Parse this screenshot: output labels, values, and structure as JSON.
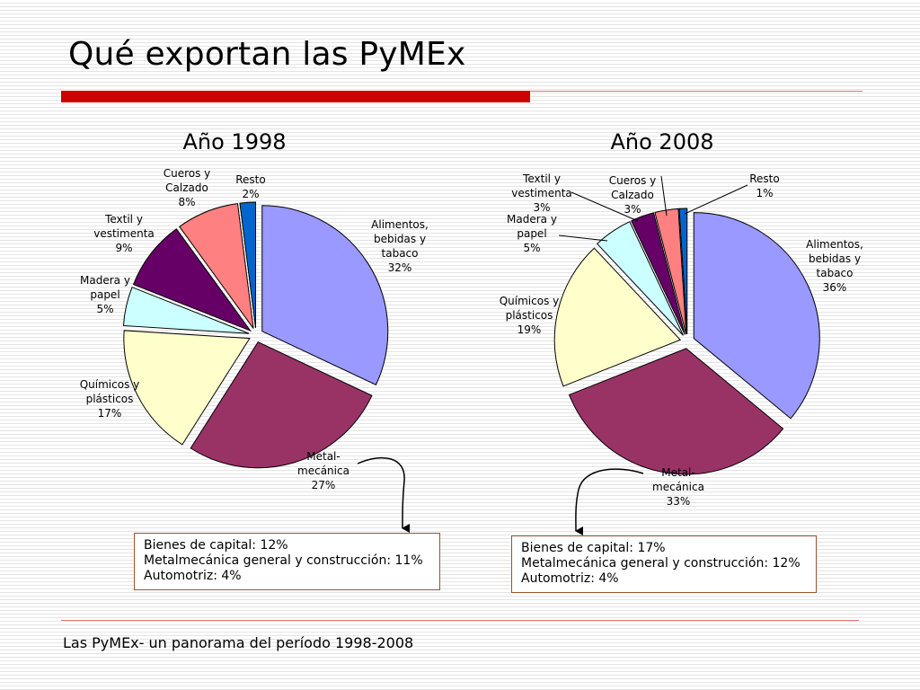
{
  "slide": {
    "title": "Qué exportan las PyMEx",
    "footer": "Las PyMEx- un panorama del período 1998-2008"
  },
  "colors": {
    "alimentos": "#9999ff",
    "metal": "#993366",
    "quimicos": "#ffffcc",
    "madera": "#ccffff",
    "textil": "#660066",
    "cueros": "#ff8080",
    "resto": "#0066cc",
    "accent": "#cc0000"
  },
  "chart_data": [
    {
      "type": "pie",
      "title": "Año 1998",
      "slices": [
        {
          "key": "alimentos",
          "label": [
            "Alimentos,",
            "bebidas y",
            "tabaco",
            "32%"
          ],
          "value": 32
        },
        {
          "key": "metal",
          "label": [
            "Metal-",
            "mecánica",
            "27%"
          ],
          "value": 27
        },
        {
          "key": "quimicos",
          "label": [
            "Químicos y",
            "plásticos",
            "17%"
          ],
          "value": 17
        },
        {
          "key": "madera",
          "label": [
            "Madera y",
            "papel",
            "5%"
          ],
          "value": 5
        },
        {
          "key": "textil",
          "label": [
            "Textil y",
            "vestimenta",
            "9%"
          ],
          "value": 9
        },
        {
          "key": "cueros",
          "label": [
            "Cueros y",
            "Calzado",
            "8%"
          ],
          "value": 8
        },
        {
          "key": "resto",
          "label": [
            "Resto",
            "2%"
          ],
          "value": 2
        }
      ]
    },
    {
      "type": "pie",
      "title": "Año 2008",
      "slices": [
        {
          "key": "alimentos",
          "label": [
            "Alimentos,",
            "bebidas y",
            "tabaco",
            "36%"
          ],
          "value": 36
        },
        {
          "key": "metal",
          "label": [
            "Metal-",
            "mecánica",
            "33%"
          ],
          "value": 33
        },
        {
          "key": "quimicos",
          "label": [
            "Químicos y",
            "plásticos",
            "19%"
          ],
          "value": 19
        },
        {
          "key": "madera",
          "label": [
            "Madera y",
            "papel",
            "5%"
          ],
          "value": 5
        },
        {
          "key": "textil",
          "label": [
            "Textil y",
            "vestimenta",
            "3%"
          ],
          "value": 3
        },
        {
          "key": "cueros",
          "label": [
            "Cueros y",
            "Calzado",
            "3%"
          ],
          "value": 3
        },
        {
          "key": "resto",
          "label": [
            "Resto",
            "1%"
          ],
          "value": 1
        }
      ]
    }
  ],
  "notes": [
    {
      "lines": [
        "Bienes de capital: 12%",
        "Metalmecánica general y construcción: 11%",
        "Automotriz: 4%"
      ]
    },
    {
      "lines": [
        "Bienes de capital: 17%",
        "Metalmecánica general y construcción: 12%",
        "Automotriz: 4%"
      ]
    }
  ]
}
